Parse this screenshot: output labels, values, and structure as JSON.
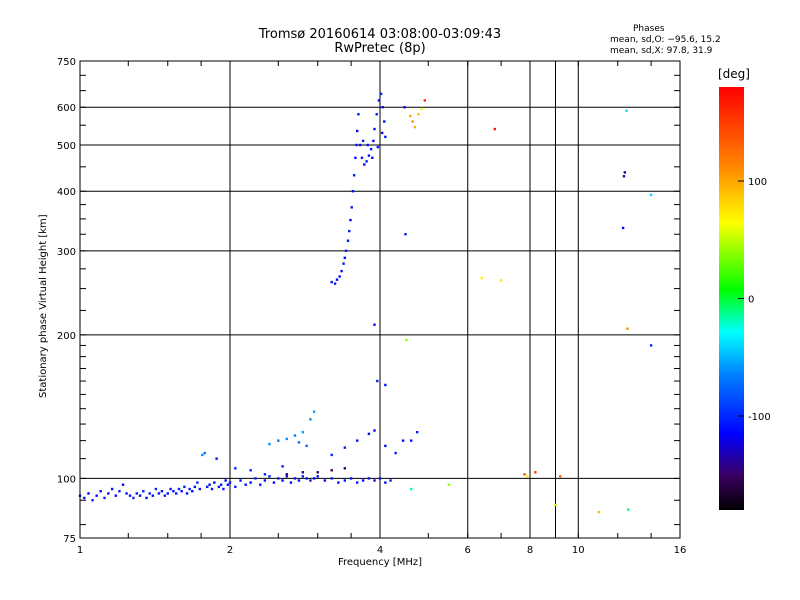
{
  "chart_data": {
    "type": "scatter",
    "title": "Tromsø 20160614 03:08:00-03:09:43",
    "subtitle": "RwPretec (8p)",
    "xlabel": "Frequency [MHz]",
    "ylabel": "Stationary phase Virtual Height [km]",
    "x_scale": "log",
    "y_scale": "log",
    "xlim": [
      1,
      16
    ],
    "ylim": [
      75,
      750
    ],
    "x_ticks": [
      1,
      2,
      4,
      8,
      16
    ],
    "x_tick_labels": [
      "1",
      "2",
      "4",
      "8",
      "16"
    ],
    "x_minor_ticks": [
      6,
      10
    ],
    "x_minor_tick_labels": [
      "6",
      "10"
    ],
    "y_ticks": [
      75,
      100,
      200,
      300,
      400,
      500,
      600,
      750
    ],
    "y_tick_labels": [
      "75",
      "100",
      "200",
      "300",
      "400",
      "500",
      "600",
      "750"
    ],
    "grid": true,
    "colorbar": {
      "label": "[deg]",
      "range": [
        -180,
        180
      ],
      "ticks": [
        100,
        0,
        -100
      ],
      "tick_labels": [
        "100",
        "0",
        "-100"
      ]
    },
    "stats": {
      "heading": "Phases",
      "o_mode": "mean, sd,O: −95.6, 15.2",
      "x_mode": "mean, sd,X:  97.8, 31.9"
    },
    "series": [
      {
        "points": [
          [
            1.0,
            92,
            -110
          ],
          [
            1.02,
            91,
            -105
          ],
          [
            1.04,
            93,
            -115
          ],
          [
            1.06,
            90,
            -100
          ],
          [
            1.08,
            92,
            -110
          ],
          [
            1.1,
            94,
            -108
          ],
          [
            1.12,
            91,
            -102
          ],
          [
            1.14,
            93,
            -112
          ],
          [
            1.16,
            95,
            -106
          ],
          [
            1.18,
            92,
            -110
          ],
          [
            1.2,
            94,
            -104
          ],
          [
            1.22,
            97,
            -112
          ],
          [
            1.24,
            93,
            -108
          ],
          [
            1.26,
            92,
            -110
          ],
          [
            1.28,
            91,
            -100
          ],
          [
            1.3,
            93,
            -106
          ],
          [
            1.32,
            92,
            -112
          ],
          [
            1.34,
            94,
            -104
          ],
          [
            1.36,
            91,
            -110
          ],
          [
            1.38,
            93,
            -108
          ],
          [
            1.4,
            92,
            -110
          ],
          [
            1.42,
            95,
            -102
          ],
          [
            1.44,
            93,
            -108
          ],
          [
            1.46,
            94,
            -112
          ],
          [
            1.48,
            92,
            -104
          ],
          [
            1.5,
            93,
            -110
          ],
          [
            1.52,
            95,
            -106
          ],
          [
            1.54,
            94,
            -112
          ],
          [
            1.56,
            93,
            -108
          ],
          [
            1.58,
            95,
            -100
          ],
          [
            1.6,
            94,
            -110
          ],
          [
            1.62,
            96,
            -104
          ],
          [
            1.64,
            93,
            -112
          ],
          [
            1.66,
            95,
            -106
          ],
          [
            1.68,
            94,
            -110
          ],
          [
            1.7,
            96,
            -108
          ],
          [
            1.72,
            98,
            -104
          ],
          [
            1.74,
            95,
            -110
          ],
          [
            1.76,
            112,
            -60
          ],
          [
            1.78,
            113,
            -70
          ],
          [
            1.8,
            96,
            -108
          ],
          [
            1.82,
            97,
            -112
          ],
          [
            1.84,
            95,
            -104
          ],
          [
            1.86,
            98,
            -110
          ],
          [
            1.88,
            110,
            -110
          ],
          [
            1.9,
            96,
            -106
          ],
          [
            1.92,
            97,
            -110
          ],
          [
            1.94,
            95,
            -104
          ],
          [
            1.96,
            99,
            -112
          ],
          [
            1.98,
            97,
            -108
          ],
          [
            2.0,
            98,
            -110
          ],
          [
            2.05,
            96,
            -104
          ],
          [
            2.1,
            99,
            -112
          ],
          [
            2.15,
            97,
            -106
          ],
          [
            2.2,
            98,
            -110
          ],
          [
            2.25,
            100,
            -102
          ],
          [
            2.3,
            97,
            -108
          ],
          [
            2.35,
            99,
            -112
          ],
          [
            2.4,
            101,
            -104
          ],
          [
            2.45,
            98,
            -110
          ],
          [
            2.5,
            100,
            -106
          ],
          [
            2.55,
            99,
            -112
          ],
          [
            2.6,
            101,
            -104
          ],
          [
            2.65,
            98,
            -110
          ],
          [
            2.7,
            100,
            -108
          ],
          [
            2.75,
            99,
            -112
          ],
          [
            2.8,
            101,
            -104
          ],
          [
            2.85,
            100,
            -110
          ],
          [
            2.9,
            99,
            -106
          ],
          [
            2.95,
            100,
            -112
          ],
          [
            3.0,
            101,
            -108
          ],
          [
            3.1,
            99,
            -110
          ],
          [
            3.2,
            100,
            -104
          ],
          [
            3.3,
            98,
            -112
          ],
          [
            3.4,
            99,
            -106
          ],
          [
            3.5,
            100,
            -110
          ],
          [
            3.6,
            98,
            -104
          ],
          [
            3.7,
            99,
            -112
          ],
          [
            3.8,
            100,
            -108
          ],
          [
            3.9,
            99,
            -110
          ],
          [
            4.0,
            100,
            -106
          ],
          [
            4.1,
            98,
            -112
          ],
          [
            4.2,
            99,
            -104
          ],
          [
            2.4,
            118,
            -60
          ],
          [
            2.5,
            120,
            -70
          ],
          [
            2.6,
            121,
            -60
          ],
          [
            2.7,
            123,
            -65
          ],
          [
            2.8,
            125,
            -55
          ],
          [
            2.9,
            133,
            -60
          ],
          [
            2.95,
            138,
            -55
          ],
          [
            2.75,
            119,
            -70
          ],
          [
            2.85,
            117,
            -75
          ],
          [
            3.2,
            112,
            -100
          ],
          [
            3.4,
            116,
            -105
          ],
          [
            3.6,
            120,
            -108
          ],
          [
            3.8,
            124,
            -110
          ],
          [
            3.9,
            126,
            -112
          ],
          [
            4.1,
            117,
            -110
          ],
          [
            4.3,
            113,
            -104
          ],
          [
            4.45,
            120,
            -112
          ],
          [
            2.6,
            102,
            -150
          ],
          [
            2.8,
            103,
            -145
          ],
          [
            3.0,
            103,
            -148
          ],
          [
            3.2,
            104,
            -150
          ],
          [
            3.4,
            105,
            -150
          ],
          [
            2.05,
            105,
            -100
          ],
          [
            2.2,
            104,
            -104
          ],
          [
            2.35,
            102,
            -108
          ],
          [
            2.55,
            106,
            -104
          ],
          [
            3.2,
            258,
            -110
          ],
          [
            3.25,
            256,
            -105
          ],
          [
            3.28,
            261,
            -112
          ],
          [
            3.32,
            265,
            -108
          ],
          [
            3.35,
            272,
            -110
          ],
          [
            3.38,
            282,
            -104
          ],
          [
            3.4,
            290,
            -112
          ],
          [
            3.42,
            300,
            -106
          ],
          [
            3.45,
            315,
            -110
          ],
          [
            3.47,
            330,
            -104
          ],
          [
            3.49,
            348,
            -112
          ],
          [
            3.51,
            370,
            -108
          ],
          [
            3.53,
            400,
            -110
          ],
          [
            3.55,
            432,
            -104
          ],
          [
            3.57,
            470,
            -110
          ],
          [
            3.59,
            500,
            -108
          ],
          [
            3.6,
            535,
            -112
          ],
          [
            3.62,
            580,
            -104
          ],
          [
            3.65,
            500,
            -110
          ],
          [
            3.68,
            470,
            -108
          ],
          [
            3.72,
            455,
            -112
          ],
          [
            3.76,
            462,
            -104
          ],
          [
            3.8,
            475,
            -110
          ],
          [
            3.84,
            490,
            -106
          ],
          [
            3.88,
            510,
            -112
          ],
          [
            3.9,
            540,
            -108
          ],
          [
            3.94,
            580,
            -104
          ],
          [
            3.98,
            620,
            -110
          ],
          [
            4.02,
            640,
            -106
          ],
          [
            4.05,
            600,
            -112
          ],
          [
            4.08,
            560,
            -108
          ],
          [
            4.1,
            520,
            -110
          ],
          [
            3.7,
            510,
            -104
          ],
          [
            3.78,
            500,
            -112
          ],
          [
            3.86,
            470,
            -108
          ],
          [
            3.96,
            495,
            -104
          ],
          [
            4.04,
            530,
            -110
          ],
          [
            3.9,
            210,
            -110
          ],
          [
            3.95,
            160,
            -100
          ],
          [
            4.1,
            157,
            -108
          ],
          [
            4.5,
            325,
            -105
          ],
          [
            4.52,
            195,
            40
          ],
          [
            4.48,
            600,
            -110
          ],
          [
            4.6,
            575,
            100
          ],
          [
            4.65,
            560,
            110
          ],
          [
            4.7,
            545,
            95
          ],
          [
            4.78,
            580,
            90
          ],
          [
            4.85,
            595,
            60
          ],
          [
            4.92,
            620,
            160
          ],
          [
            4.62,
            120,
            -108
          ],
          [
            4.75,
            125,
            -104
          ],
          [
            4.62,
            95,
            -20
          ],
          [
            5.5,
            97,
            40
          ],
          [
            6.4,
            263,
            70
          ],
          [
            7.0,
            260,
            75
          ],
          [
            6.8,
            540,
            170
          ],
          [
            7.8,
            102,
            140
          ],
          [
            7.9,
            101,
            60
          ],
          [
            8.2,
            103,
            150
          ],
          [
            9.2,
            101,
            130
          ],
          [
            9.0,
            88,
            50
          ],
          [
            11.0,
            85,
            90
          ],
          [
            12.6,
            86,
            -10
          ],
          [
            12.5,
            590,
            -40
          ],
          [
            12.4,
            438,
            -140
          ],
          [
            12.35,
            430,
            -130
          ],
          [
            12.3,
            335,
            -110
          ],
          [
            12.55,
            206,
            110
          ],
          [
            14.0,
            393,
            -40
          ],
          [
            14.0,
            190,
            -100
          ]
        ]
      }
    ]
  }
}
